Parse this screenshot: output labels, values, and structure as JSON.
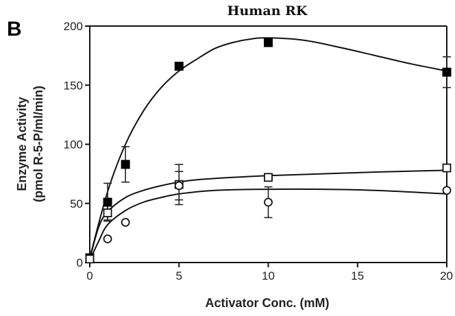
{
  "chart_data": {
    "type": "scatter",
    "panel_label": "B",
    "title": "Human RK",
    "xlabel": "Activator Conc. (mM)",
    "ylabel": [
      "Enzyme Activity",
      "(pmol R-5-P/ml/min)"
    ],
    "xlim": [
      0,
      20
    ],
    "ylim": [
      0,
      200
    ],
    "x_ticks": [
      0,
      5,
      10,
      15,
      20
    ],
    "y_ticks": [
      0,
      50,
      100,
      150,
      200
    ],
    "x_tick_labels": [
      "0",
      "5",
      "10",
      "15",
      "20"
    ],
    "y_tick_labels": [
      "0",
      "50",
      "100",
      "150",
      "200"
    ],
    "grid": false,
    "series": [
      {
        "marker": "filled-square",
        "x": [
          0,
          1,
          2,
          5,
          10,
          20
        ],
        "y": [
          4,
          51,
          83,
          166,
          186,
          161
        ],
        "err": [
          0,
          16,
          15,
          0,
          0,
          13
        ],
        "fit": [
          [
            0,
            4
          ],
          [
            1,
            60
          ],
          [
            2,
            100
          ],
          [
            3,
            128
          ],
          [
            4,
            148
          ],
          [
            5,
            162
          ],
          [
            6,
            172
          ],
          [
            7,
            181
          ],
          [
            8,
            186
          ],
          [
            9,
            189
          ],
          [
            10,
            190
          ],
          [
            12,
            188
          ],
          [
            14,
            182
          ],
          [
            16,
            175
          ],
          [
            18,
            168
          ],
          [
            20,
            162
          ]
        ]
      },
      {
        "marker": "open-square",
        "x": [
          0,
          1,
          5,
          10,
          20
        ],
        "y": [
          3,
          42,
          66,
          72,
          80
        ],
        "err": [
          0,
          6,
          17,
          0,
          0
        ],
        "fit": [
          [
            0,
            3
          ],
          [
            0.5,
            30
          ],
          [
            1,
            43
          ],
          [
            2,
            55
          ],
          [
            3,
            61
          ],
          [
            4,
            65
          ],
          [
            5,
            68
          ],
          [
            6,
            70
          ],
          [
            8,
            72
          ],
          [
            10,
            73.5
          ],
          [
            13,
            75
          ],
          [
            16,
            76.5
          ],
          [
            20,
            78
          ]
        ]
      },
      {
        "marker": "open-circle",
        "x": [
          1,
          2,
          5,
          10,
          20
        ],
        "y": [
          20,
          34,
          65,
          51,
          61
        ],
        "err": [
          0,
          0,
          12,
          13,
          0
        ],
        "fit": [
          [
            0,
            2
          ],
          [
            0.5,
            18
          ],
          [
            1,
            32
          ],
          [
            2,
            44
          ],
          [
            3,
            51
          ],
          [
            4,
            55
          ],
          [
            5,
            58
          ],
          [
            7,
            61
          ],
          [
            10,
            62
          ],
          [
            13,
            62
          ],
          [
            16,
            61
          ],
          [
            20,
            58
          ]
        ]
      }
    ]
  }
}
